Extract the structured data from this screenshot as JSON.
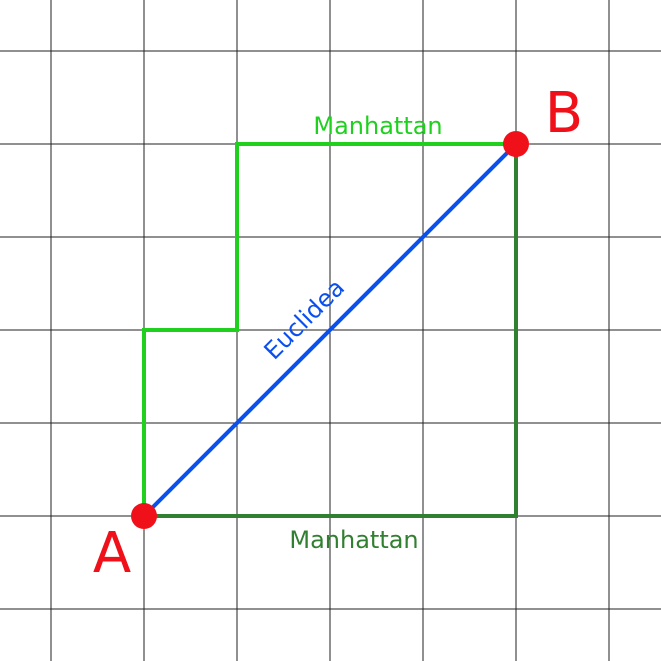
{
  "nodes": [
    {
      "label": "A"
    },
    {
      "label": "B"
    }
  ],
  "edges": [
    {
      "label": "Manhattan"
    },
    {
      "label": "Manhattan"
    },
    {
      "label": "Euclidea"
    }
  ]
}
